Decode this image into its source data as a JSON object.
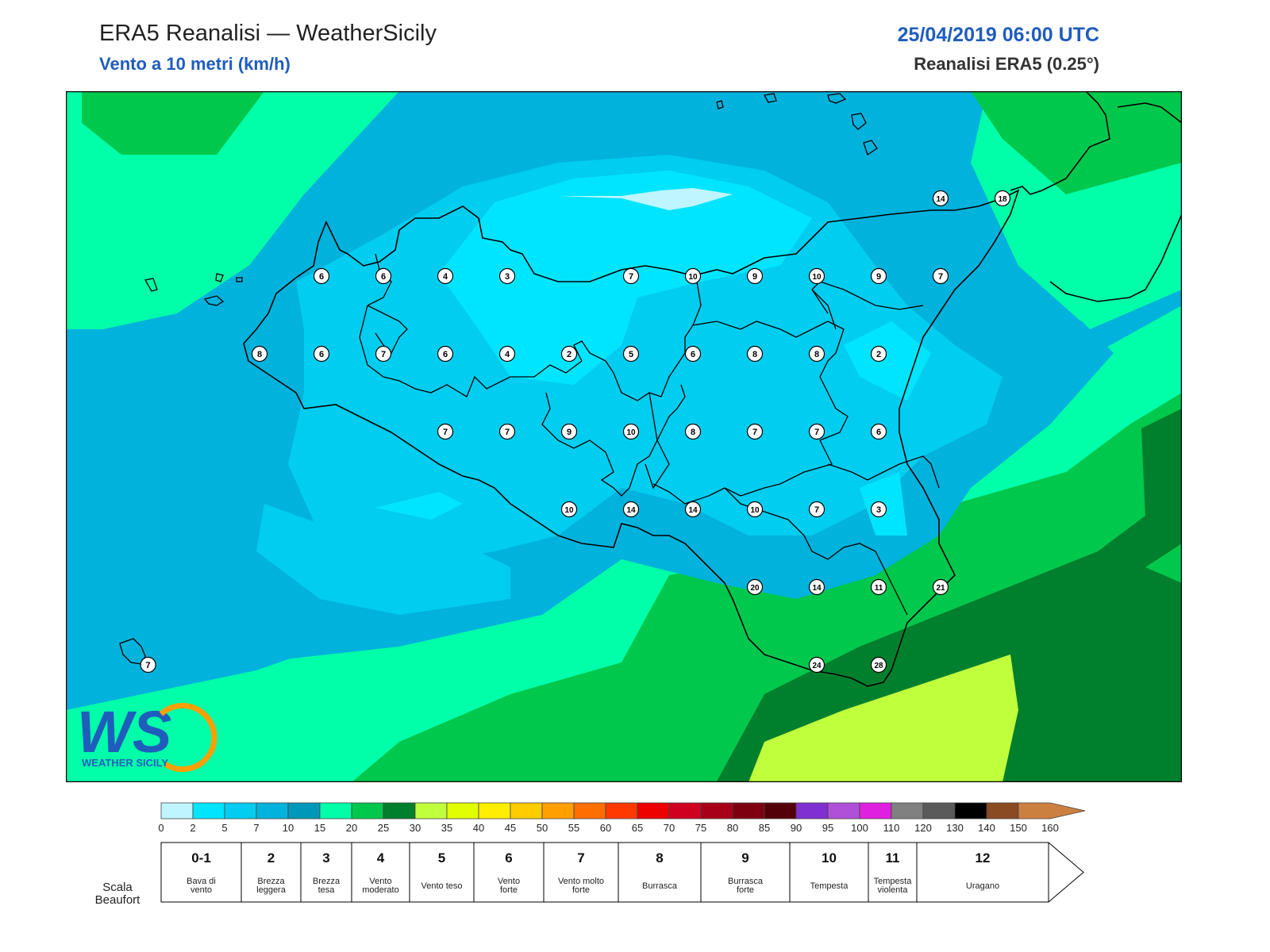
{
  "header": {
    "title": "ERA5 Reanalisi — WeatherSicily",
    "subtitle": "Vento a 10 metri (km/h)",
    "datetime": "25/04/2019 06:00 UTC",
    "model": "Reanalisi ERA5 (0.25°)"
  },
  "logo": {
    "text": "WEATHER SICILY"
  },
  "map": {
    "stations": [
      {
        "value": "6",
        "col": 4,
        "row": 0
      },
      {
        "value": "6",
        "col": 5,
        "row": 0
      },
      {
        "value": "4",
        "col": 6,
        "row": 0
      },
      {
        "value": "3",
        "col": 7,
        "row": 0
      },
      {
        "value": "7",
        "col": 9,
        "row": 0
      },
      {
        "value": "10",
        "col": 10,
        "row": 0
      },
      {
        "value": "9",
        "col": 11,
        "row": 0
      },
      {
        "value": "10",
        "col": 12,
        "row": 0
      },
      {
        "value": "9",
        "col": 13,
        "row": 0
      },
      {
        "value": "7",
        "col": 14,
        "row": 0
      },
      {
        "value": "8",
        "col": 3,
        "row": 1
      },
      {
        "value": "6",
        "col": 4,
        "row": 1
      },
      {
        "value": "7",
        "col": 5,
        "row": 1
      },
      {
        "value": "6",
        "col": 6,
        "row": 1
      },
      {
        "value": "4",
        "col": 7,
        "row": 1
      },
      {
        "value": "2",
        "col": 8,
        "row": 1
      },
      {
        "value": "5",
        "col": 9,
        "row": 1
      },
      {
        "value": "6",
        "col": 10,
        "row": 1
      },
      {
        "value": "8",
        "col": 11,
        "row": 1
      },
      {
        "value": "8",
        "col": 12,
        "row": 1
      },
      {
        "value": "2",
        "col": 13,
        "row": 1
      },
      {
        "value": "7",
        "col": 6,
        "row": 2
      },
      {
        "value": "7",
        "col": 7,
        "row": 2
      },
      {
        "value": "9",
        "col": 8,
        "row": 2
      },
      {
        "value": "10",
        "col": 9,
        "row": 2
      },
      {
        "value": "8",
        "col": 10,
        "row": 2
      },
      {
        "value": "7",
        "col": 11,
        "row": 2
      },
      {
        "value": "7",
        "col": 12,
        "row": 2
      },
      {
        "value": "6",
        "col": 13,
        "row": 2
      },
      {
        "value": "10",
        "col": 8,
        "row": 3
      },
      {
        "value": "14",
        "col": 9,
        "row": 3
      },
      {
        "value": "14",
        "col": 10,
        "row": 3
      },
      {
        "value": "10",
        "col": 11,
        "row": 3
      },
      {
        "value": "7",
        "col": 12,
        "row": 3
      },
      {
        "value": "3",
        "col": 13,
        "row": 3
      },
      {
        "value": "20",
        "col": 11,
        "row": 4
      },
      {
        "value": "14",
        "col": 12,
        "row": 4
      },
      {
        "value": "11",
        "col": 13,
        "row": 4
      },
      {
        "value": "21",
        "col": 14,
        "row": 4
      },
      {
        "value": "24",
        "col": 12,
        "row": 5
      },
      {
        "value": "28",
        "col": 13,
        "row": 5
      },
      {
        "value": "14",
        "col": 14,
        "row": -1.0
      },
      {
        "value": "18",
        "col": 15,
        "row": -1.0
      },
      {
        "value": "7",
        "col": 1.2,
        "row": 5
      }
    ]
  },
  "colorbar": {
    "ticks": [
      "0",
      "2",
      "5",
      "7",
      "10",
      "15",
      "20",
      "25",
      "30",
      "35",
      "40",
      "45",
      "50",
      "55",
      "60",
      "65",
      "70",
      "75",
      "80",
      "85",
      "90",
      "95",
      "100",
      "110",
      "120",
      "130",
      "140",
      "150",
      "160"
    ],
    "colors": [
      "#bff5ff",
      "#00e5ff",
      "#00cdf0",
      "#00b2dc",
      "#0098b8",
      "#00ffa8",
      "#00c84c",
      "#007f2c",
      "#c0ff3c",
      "#e0ff00",
      "#ffee00",
      "#ffcc00",
      "#ff9f00",
      "#ff6e00",
      "#ff3a00",
      "#ee0000",
      "#d00020",
      "#a80018",
      "#7e0010",
      "#540008",
      "#8030d0",
      "#b050d8",
      "#e020e0",
      "#808080",
      "#5a5a5a",
      "#000000",
      "#8a4a22",
      "#cc8040"
    ]
  },
  "beaufort": {
    "label": "Scala Beaufort",
    "classes": [
      {
        "num": "0-1",
        "desc": "Bava di vento"
      },
      {
        "num": "2",
        "desc": "Brezza leggera"
      },
      {
        "num": "3",
        "desc": "Brezza tesa"
      },
      {
        "num": "4",
        "desc": "Vento moderato"
      },
      {
        "num": "5",
        "desc": "Vento teso"
      },
      {
        "num": "6",
        "desc": "Vento forte"
      },
      {
        "num": "7",
        "desc": "Vento molto forte"
      },
      {
        "num": "8",
        "desc": "Burrasca"
      },
      {
        "num": "9",
        "desc": "Burrasca forte"
      },
      {
        "num": "10",
        "desc": "Tempesta"
      },
      {
        "num": "11",
        "desc": "Tempesta violenta"
      },
      {
        "num": "12",
        "desc": "Uragano"
      }
    ]
  }
}
